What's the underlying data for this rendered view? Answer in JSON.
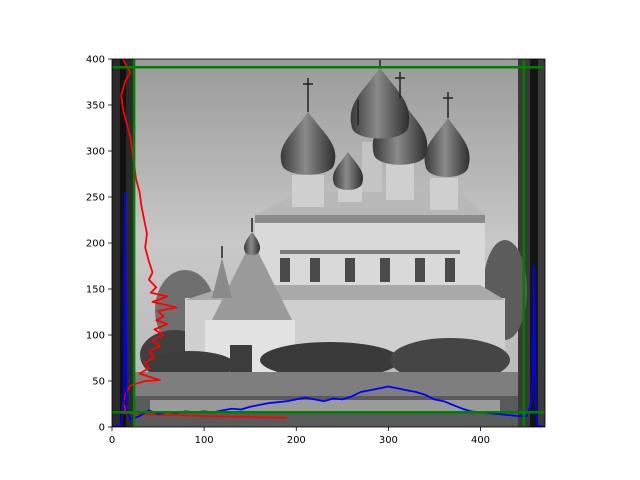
{
  "chart_data": {
    "type": "line",
    "title": "",
    "xlabel": "",
    "ylabel": "",
    "xlim": [
      0,
      470
    ],
    "ylim": [
      0,
      400
    ],
    "x_ticks": [
      0,
      100,
      200,
      300,
      400
    ],
    "y_ticks": [
      0,
      50,
      100,
      150,
      200,
      250,
      300,
      350,
      400
    ],
    "grid": false,
    "legend": "none",
    "background_image": {
      "description": "grayscale photograph of a multi-domed church",
      "extent": [
        0,
        470,
        0,
        400
      ]
    },
    "series": [
      {
        "color": "#ff0000",
        "orientation": "vertical-profile",
        "points": [
          [
            12,
            400
          ],
          [
            16,
            392
          ],
          [
            20,
            386
          ],
          [
            14,
            375
          ],
          [
            10,
            360
          ],
          [
            12,
            345
          ],
          [
            16,
            330
          ],
          [
            20,
            315
          ],
          [
            22,
            300
          ],
          [
            24,
            285
          ],
          [
            26,
            270
          ],
          [
            30,
            255
          ],
          [
            32,
            240
          ],
          [
            35,
            225
          ],
          [
            38,
            210
          ],
          [
            36,
            195
          ],
          [
            40,
            180
          ],
          [
            44,
            168
          ],
          [
            40,
            160
          ],
          [
            48,
            152
          ],
          [
            42,
            146
          ],
          [
            60,
            142
          ],
          [
            44,
            136
          ],
          [
            70,
            130
          ],
          [
            50,
            126
          ],
          [
            56,
            120
          ],
          [
            48,
            116
          ],
          [
            60,
            112
          ],
          [
            46,
            106
          ],
          [
            56,
            100
          ],
          [
            44,
            94
          ],
          [
            52,
            88
          ],
          [
            40,
            82
          ],
          [
            46,
            76
          ],
          [
            36,
            70
          ],
          [
            40,
            64
          ],
          [
            30,
            58
          ],
          [
            52,
            51
          ],
          [
            36,
            50
          ],
          [
            20,
            45
          ],
          [
            14,
            35
          ],
          [
            12,
            25
          ],
          [
            15,
            20
          ],
          [
            12,
            15
          ],
          [
            60,
            13
          ],
          [
            100,
            12
          ],
          [
            150,
            11
          ],
          [
            185,
            10
          ],
          [
            190,
            10
          ]
        ]
      },
      {
        "color": "#0000ff",
        "orientation": "horizontal-profile",
        "points": [
          [
            0,
            0
          ],
          [
            10,
            2
          ],
          [
            13,
            40
          ],
          [
            14,
            255
          ],
          [
            15,
            120
          ],
          [
            16,
            20
          ],
          [
            20,
            8
          ],
          [
            30,
            12
          ],
          [
            40,
            18
          ],
          [
            50,
            14
          ],
          [
            60,
            16
          ],
          [
            70,
            15
          ],
          [
            80,
            17
          ],
          [
            90,
            16
          ],
          [
            100,
            17
          ],
          [
            110,
            16
          ],
          [
            120,
            18
          ],
          [
            130,
            20
          ],
          [
            140,
            19
          ],
          [
            150,
            22
          ],
          [
            160,
            24
          ],
          [
            170,
            26
          ],
          [
            180,
            27
          ],
          [
            190,
            28
          ],
          [
            200,
            30
          ],
          [
            210,
            32
          ],
          [
            220,
            30
          ],
          [
            230,
            28
          ],
          [
            240,
            31
          ],
          [
            250,
            30
          ],
          [
            260,
            33
          ],
          [
            270,
            38
          ],
          [
            280,
            40
          ],
          [
            290,
            42
          ],
          [
            300,
            44
          ],
          [
            310,
            42
          ],
          [
            320,
            40
          ],
          [
            330,
            38
          ],
          [
            340,
            35
          ],
          [
            350,
            30
          ],
          [
            360,
            28
          ],
          [
            370,
            24
          ],
          [
            380,
            20
          ],
          [
            390,
            17
          ],
          [
            400,
            16
          ],
          [
            410,
            15
          ],
          [
            420,
            14
          ],
          [
            430,
            13
          ],
          [
            440,
            12
          ],
          [
            450,
            12
          ],
          [
            455,
            25
          ],
          [
            457,
            60
          ],
          [
            458,
            175
          ],
          [
            459,
            90
          ],
          [
            460,
            20
          ],
          [
            462,
            2
          ],
          [
            470,
            0
          ]
        ]
      },
      {
        "color": "#008000",
        "orientation": "vertical-line",
        "value": 24
      },
      {
        "color": "#008000",
        "orientation": "vertical-line",
        "value": 447
      },
      {
        "color": "#008000",
        "orientation": "horizontal-line",
        "value": 391
      },
      {
        "color": "#008000",
        "orientation": "horizontal-line",
        "value": 16
      }
    ]
  }
}
